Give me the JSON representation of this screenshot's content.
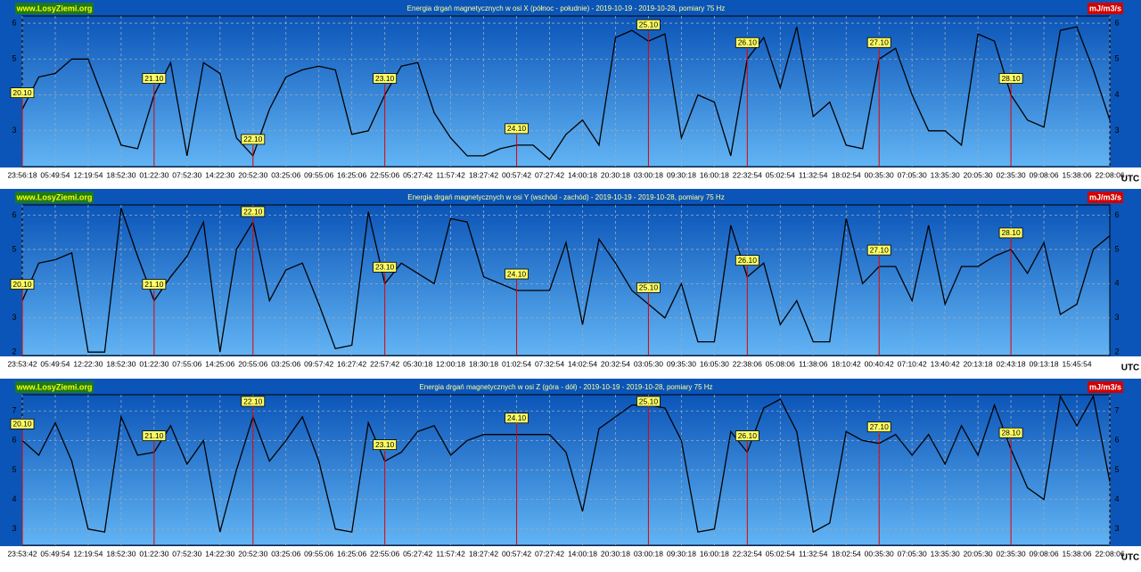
{
  "chart_data": [
    {
      "type": "line",
      "title": "Energia drgań magnetycznych w osi X (północ - południe) - 2019-10-19 - 2019-10-28, pomiary 75 Hz",
      "source": "www.LosyZiemi.org",
      "unit": "mJ/m3/s",
      "x_label": "UTC",
      "categories": [
        "23:56:18",
        null,
        "05:49:54",
        null,
        "12:19:54",
        null,
        "18:52:30",
        null,
        "01:22:30",
        null,
        "07:52:30",
        null,
        "14:22:30",
        null,
        "20:52:30",
        null,
        "03:25:06",
        null,
        "09:55:06",
        null,
        "16:25:06",
        null,
        "22:55:06",
        null,
        "05:27:42",
        null,
        "11:57:42",
        null,
        "18:27:42",
        null,
        "00:57:42",
        null,
        "07:27:42",
        null,
        "14:00:18",
        null,
        "20:30:18",
        null,
        "03:00:18",
        null,
        "09:30:18",
        null,
        "16:00:18",
        null,
        "22:32:54",
        null,
        "05:02:54",
        null,
        "11:32:54",
        null,
        "18:02:54",
        null,
        "00:35:30",
        null,
        "07:05:30",
        null,
        "13:35:30",
        null,
        "20:05:30",
        null,
        "02:35:30",
        null,
        "09:08:06",
        null,
        "15:38:06",
        null,
        "22:08:06"
      ],
      "values": [
        3.6,
        4.5,
        4.6,
        5.0,
        5.0,
        3.8,
        2.6,
        2.5,
        4.0,
        4.9,
        2.3,
        4.9,
        4.6,
        2.8,
        2.3,
        3.6,
        4.5,
        4.7,
        4.8,
        4.7,
        2.9,
        3.0,
        4.0,
        4.8,
        4.9,
        3.5,
        2.8,
        2.3,
        2.3,
        2.5,
        2.6,
        2.6,
        2.2,
        2.9,
        3.3,
        2.6,
        5.6,
        5.8,
        5.5,
        5.7,
        2.8,
        4.0,
        3.8,
        2.3,
        5.0,
        5.6,
        4.2,
        5.9,
        3.4,
        3.8,
        2.6,
        2.5,
        5.0,
        5.3,
        4.0,
        3.0,
        3.0,
        2.6,
        5.7,
        5.5,
        4.0,
        3.3,
        3.1,
        5.8,
        5.9,
        4.7,
        3.3
      ],
      "color": "#000000",
      "ylim": [
        2.0,
        6.2
      ],
      "yticks": [
        3,
        4,
        5,
        6
      ],
      "grid": true,
      "annotations": [
        {
          "text": "20.10",
          "x": "23:56:18"
        },
        {
          "text": "21.10",
          "x": "01:22:30"
        },
        {
          "text": "22.10",
          "x": "20:52:30"
        },
        {
          "text": "23.10",
          "x": "22:55:06"
        },
        {
          "text": "24.10",
          "x": "00:57:42"
        },
        {
          "text": "25.10",
          "x": "03:00:18"
        },
        {
          "text": "26.10",
          "x": "22:32:54"
        },
        {
          "text": "27.10",
          "x": "00:35:30"
        },
        {
          "text": "28.10",
          "x": "02:35:30"
        }
      ]
    },
    {
      "type": "line",
      "title": "Energia drgań magnetycznych w osi Y (wschód - zachód) - 2019-10-19 - 2019-10-28, pomiary 75 Hz",
      "source": "www.LosyZiemi.org",
      "unit": "mJ/m3/s",
      "x_label": "UTC",
      "categories": [
        "23:53:42",
        null,
        "05:49:54",
        null,
        "12:22:30",
        null,
        "18:52:30",
        null,
        "01:22:30",
        null,
        "07:55:06",
        null,
        "14:25:06",
        null,
        "20:55:06",
        null,
        "03:25:06",
        null,
        "09:57:42",
        null,
        "16:27:42",
        null,
        "22:57:42",
        null,
        "05:30:18",
        null,
        "12:00:18",
        null,
        "18:30:18",
        null,
        "01:02:54",
        null,
        "07:32:54",
        null,
        "14:02:54",
        null,
        "20:32:54",
        null,
        "03:05:30",
        null,
        "09:35:30",
        null,
        "16:05:30",
        null,
        "22:38:06",
        null,
        "05:08:06",
        null,
        "11:38:06",
        null,
        "18:10:42",
        null,
        "00:40:42",
        null,
        "07:10:42",
        null,
        "13:40:42",
        null,
        "20:13:18",
        null,
        "02:43:18",
        null,
        "09:13:18",
        null,
        "15:45:54",
        null,
        null
      ],
      "values": [
        3.5,
        4.6,
        4.7,
        4.9,
        2.0,
        2.0,
        6.2,
        4.8,
        3.5,
        4.2,
        4.8,
        5.8,
        2.0,
        5.0,
        5.8,
        3.5,
        4.4,
        4.6,
        3.4,
        2.1,
        2.2,
        6.1,
        4.0,
        4.6,
        4.3,
        4.0,
        5.9,
        5.8,
        4.2,
        4.0,
        3.8,
        3.8,
        3.8,
        5.2,
        2.8,
        5.3,
        4.6,
        3.8,
        3.4,
        3.0,
        4.0,
        2.3,
        2.3,
        5.7,
        4.2,
        4.6,
        2.8,
        3.5,
        2.3,
        2.3,
        5.9,
        4.0,
        4.5,
        4.5,
        3.5,
        5.7,
        3.4,
        4.5,
        4.5,
        4.8,
        5.0,
        4.3,
        5.2,
        3.1,
        3.4,
        5.0,
        5.4
      ],
      "color": "#000000",
      "ylim": [
        1.9,
        6.3
      ],
      "yticks": [
        2,
        3,
        4,
        5,
        6
      ],
      "grid": true,
      "annotations": [
        {
          "text": "20.10",
          "x": "23:53:42"
        },
        {
          "text": "21.10",
          "x": "01:22:30"
        },
        {
          "text": "22.10",
          "x": "20:55:06"
        },
        {
          "text": "23.10",
          "x": "22:57:42"
        },
        {
          "text": "24.10",
          "x": "01:02:54"
        },
        {
          "text": "25.10",
          "x": "03:05:30"
        },
        {
          "text": "26.10",
          "x": "22:38:06"
        },
        {
          "text": "27.10",
          "x": "00:40:42"
        },
        {
          "text": "28.10",
          "x": "02:43:18"
        }
      ]
    },
    {
      "type": "line",
      "title": "Energia drgań magnetycznych w osi Z (góra - dół) - 2019-10-19 - 2019-10-28, pomiary 75 Hz",
      "source": "www.LosyZiemi.org",
      "unit": "mJ/m3/s",
      "x_label": "UTC",
      "categories": [
        "23:53:42",
        null,
        "05:49:54",
        null,
        "12:19:54",
        null,
        "18:52:30",
        null,
        "01:22:30",
        null,
        "07:52:30",
        null,
        "14:22:30",
        null,
        "20:52:30",
        null,
        "03:25:06",
        null,
        "09:55:06",
        null,
        "16:25:06",
        null,
        "22:55:06",
        null,
        "05:27:42",
        null,
        "11:57:42",
        null,
        "18:27:42",
        null,
        "00:57:42",
        null,
        "07:27:42",
        null,
        "14:00:18",
        null,
        "20:30:18",
        null,
        "03:00:18",
        null,
        "09:30:18",
        null,
        "16:00:18",
        null,
        "22:32:54",
        null,
        "05:02:54",
        null,
        "11:32:54",
        null,
        "18:02:54",
        null,
        "00:35:30",
        null,
        "07:05:30",
        null,
        "13:35:30",
        null,
        "20:05:30",
        null,
        "02:35:30",
        null,
        "09:08:06",
        null,
        "15:38:06",
        null,
        "22:08:06"
      ],
      "values": [
        6.0,
        5.5,
        6.6,
        5.3,
        3.0,
        2.9,
        6.8,
        5.5,
        5.6,
        6.5,
        5.2,
        6.0,
        2.9,
        5.0,
        6.8,
        5.3,
        6.0,
        6.8,
        5.3,
        3.0,
        2.9,
        6.6,
        5.3,
        5.6,
        6.3,
        6.5,
        5.5,
        6.0,
        6.2,
        6.2,
        6.2,
        6.2,
        6.2,
        5.6,
        3.6,
        6.4,
        6.8,
        7.2,
        7.2,
        7.1,
        6.0,
        2.9,
        3.0,
        6.3,
        5.6,
        7.1,
        7.4,
        6.3,
        2.9,
        3.2,
        6.3,
        6.0,
        5.9,
        6.2,
        5.5,
        6.2,
        5.2,
        6.5,
        5.5,
        7.2,
        5.7,
        4.4,
        4.0,
        7.5,
        6.5,
        7.5,
        4.6
      ],
      "color": "#000000",
      "ylim": [
        2.45,
        7.55
      ],
      "yticks": [
        3,
        4,
        5,
        6,
        7
      ],
      "grid": true,
      "annotations": [
        {
          "text": "20.10",
          "x": "23:53:42"
        },
        {
          "text": "21.10",
          "x": "01:22:30"
        },
        {
          "text": "22.10",
          "x": "20:52:30"
        },
        {
          "text": "23.10",
          "x": "22:55:06"
        },
        {
          "text": "24.10",
          "x": "00:57:42"
        },
        {
          "text": "25.10",
          "x": "03:00:18"
        },
        {
          "text": "26.10",
          "x": "22:32:54"
        },
        {
          "text": "27.10",
          "x": "00:35:30"
        },
        {
          "text": "28.10",
          "x": "02:35:30"
        }
      ]
    }
  ]
}
